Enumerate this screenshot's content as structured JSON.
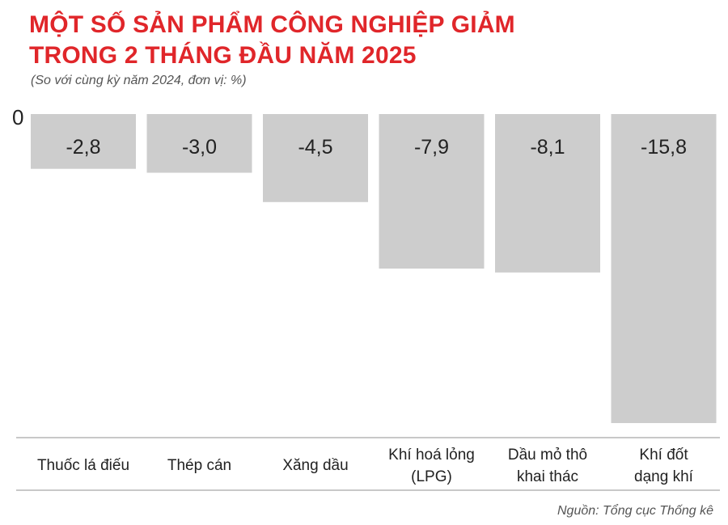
{
  "header": {
    "title_line1": "MỘT SỐ SẢN PHẨM CÔNG NGHIỆP GIẢM",
    "title_line2": "TRONG 2 THÁNG ĐẦU NĂM 2025",
    "subtitle": "(So với cùng kỳ năm 2024, đơn vị: %)"
  },
  "footer": {
    "source": "Nguồn: Tổng cục Thống kê"
  },
  "colors": {
    "title": "#e0262a",
    "bar": "#cdcdcd",
    "axis": "#b5b5b5",
    "text": "#222222"
  },
  "chart_data": {
    "type": "bar",
    "title": "MỘT SỐ SẢN PHẨM CÔNG NGHIỆP GIẢM TRONG 2 THÁNG ĐẦU NĂM 2025",
    "subtitle": "(So với cùng kỳ năm 2024, đơn vị: %)",
    "zero_label": "0",
    "categories": [
      [
        "Thuốc lá điếu"
      ],
      [
        "Thép cán"
      ],
      [
        "Xăng dầu"
      ],
      [
        "Khí hoá lỏng",
        "(LPG)"
      ],
      [
        "Dầu mỏ thô",
        "khai thác"
      ],
      [
        "Khí đốt",
        "dạng khí"
      ]
    ],
    "values": [
      -2.8,
      -3.0,
      -4.5,
      -7.9,
      -8.1,
      -15.8
    ],
    "value_labels": [
      "-2,8",
      "-3,0",
      "-4,5",
      "-7,9",
      "-8,1",
      "-15,8"
    ],
    "ylim": [
      -15.8,
      0
    ],
    "grid": false,
    "legend": "none"
  }
}
